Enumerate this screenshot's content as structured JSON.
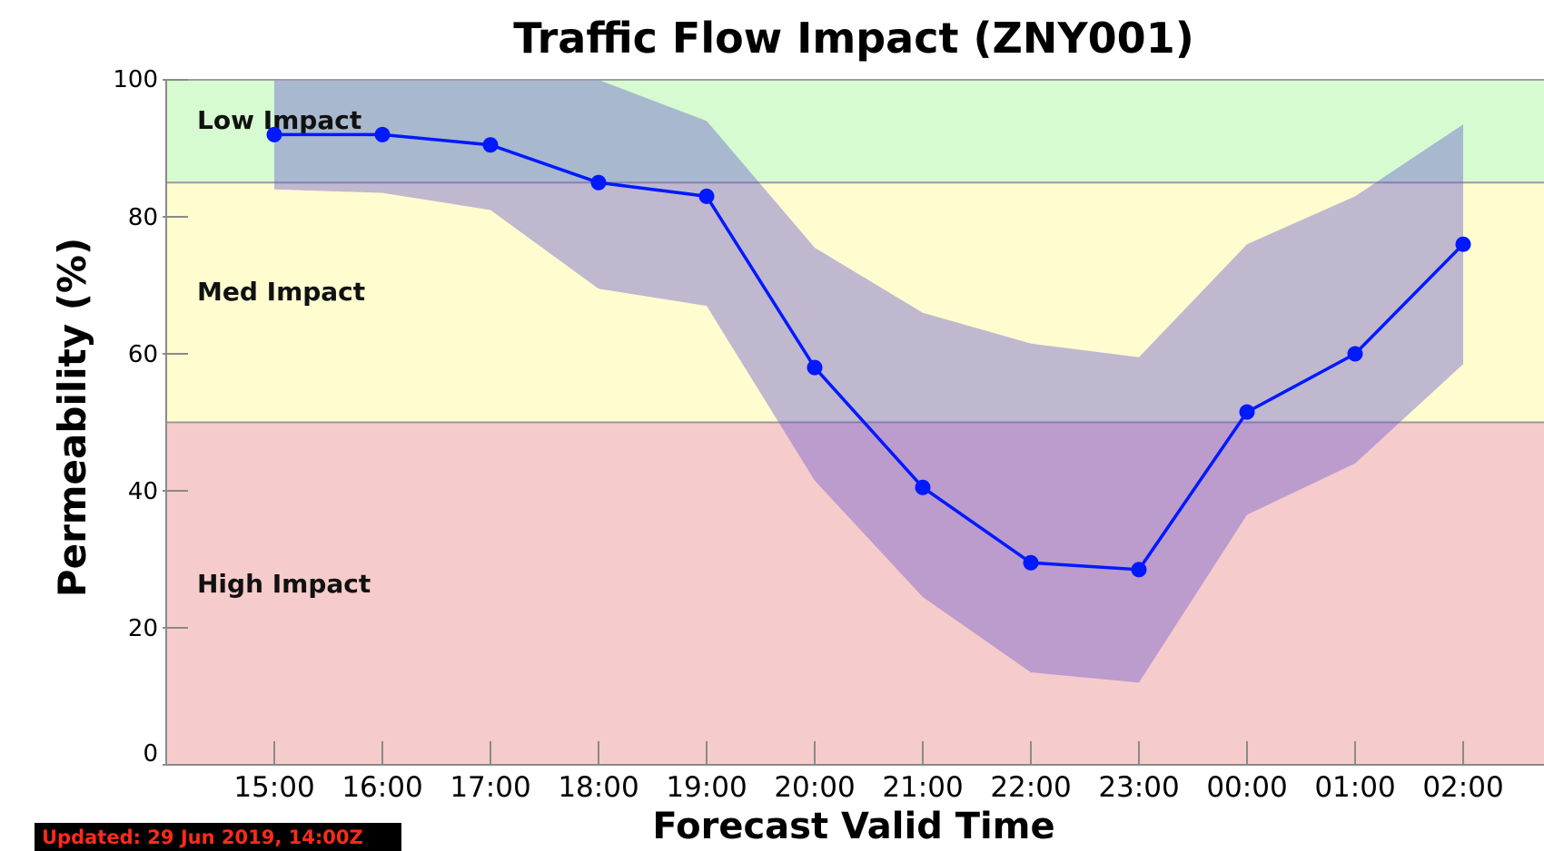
{
  "chart_data": {
    "type": "line",
    "title": "Traffic Flow Impact (ZNY001)",
    "xlabel": "Forecast Valid Time",
    "ylabel": "Permeability (%)",
    "ylim": [
      0,
      100
    ],
    "yticks": [
      0,
      20,
      40,
      60,
      80,
      100
    ],
    "categories": [
      "15:00",
      "16:00",
      "17:00",
      "18:00",
      "19:00",
      "20:00",
      "21:00",
      "22:00",
      "23:00",
      "00:00",
      "01:00",
      "02:00"
    ],
    "series": [
      {
        "values": [
          92,
          92,
          90.5,
          85,
          83,
          58,
          40.5,
          29.5,
          28.5,
          51.5,
          60,
          76
        ],
        "color": "#0019ff"
      }
    ],
    "range_band": {
      "upper": [
        100,
        100,
        100,
        100,
        94,
        75.5,
        66,
        61.5,
        59.5,
        76,
        83,
        93.5
      ],
      "lower": [
        84,
        83.5,
        81,
        69.5,
        67,
        41.5,
        24.5,
        13.5,
        12,
        36.5,
        44,
        58.5
      ],
      "color": "#6a5acd"
    },
    "impact_zones": [
      {
        "label": "Low Impact",
        "from": 85,
        "to": 100,
        "color": "#d6fbd0"
      },
      {
        "label": "Med Impact",
        "from": 50,
        "to": 85,
        "color": "#fffcd0"
      },
      {
        "label": "High Impact",
        "from": 0,
        "to": 50,
        "color": "#f6cbcb"
      }
    ],
    "grid": false,
    "legend": "none"
  },
  "footer": {
    "updated": "Updated: 29 Jun 2019, 14:00Z"
  }
}
